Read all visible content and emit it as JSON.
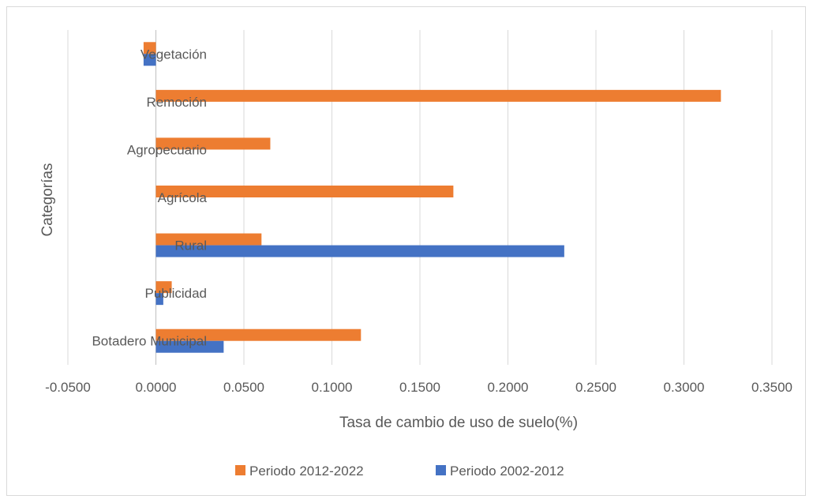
{
  "chart_data": {
    "type": "bar",
    "orientation": "horizontal",
    "title": "",
    "xlabel": "Tasa de cambio de uso de suelo(%)",
    "ylabel": "Categorías",
    "categories": [
      "Vegetación",
      "Remoción",
      "Agropecuario",
      "Agrícola",
      "Rural",
      "Publicidad",
      "Botadero Municipal"
    ],
    "series": [
      {
        "name": "Periodo 2012-2022",
        "color": "#ed7d31",
        "values": [
          -0.007,
          0.321,
          0.065,
          0.169,
          0.06,
          0.009,
          0.1165
        ]
      },
      {
        "name": "Periodo 2002-2012",
        "color": "#4472c4",
        "values": [
          -0.007,
          0.0,
          0.0,
          0.0,
          0.232,
          0.0042,
          0.0385
        ]
      }
    ],
    "xlim": [
      -0.05,
      0.35
    ],
    "xticks": [
      -0.05,
      0.0,
      0.05,
      0.1,
      0.15,
      0.2,
      0.25,
      0.3,
      0.35
    ],
    "xtick_labels": [
      "-0.0500",
      "0.0000",
      "0.0500",
      "0.1000",
      "0.1500",
      "0.2000",
      "0.2500",
      "0.3000",
      "0.3500"
    ],
    "grid": true,
    "legend_position": "bottom"
  }
}
